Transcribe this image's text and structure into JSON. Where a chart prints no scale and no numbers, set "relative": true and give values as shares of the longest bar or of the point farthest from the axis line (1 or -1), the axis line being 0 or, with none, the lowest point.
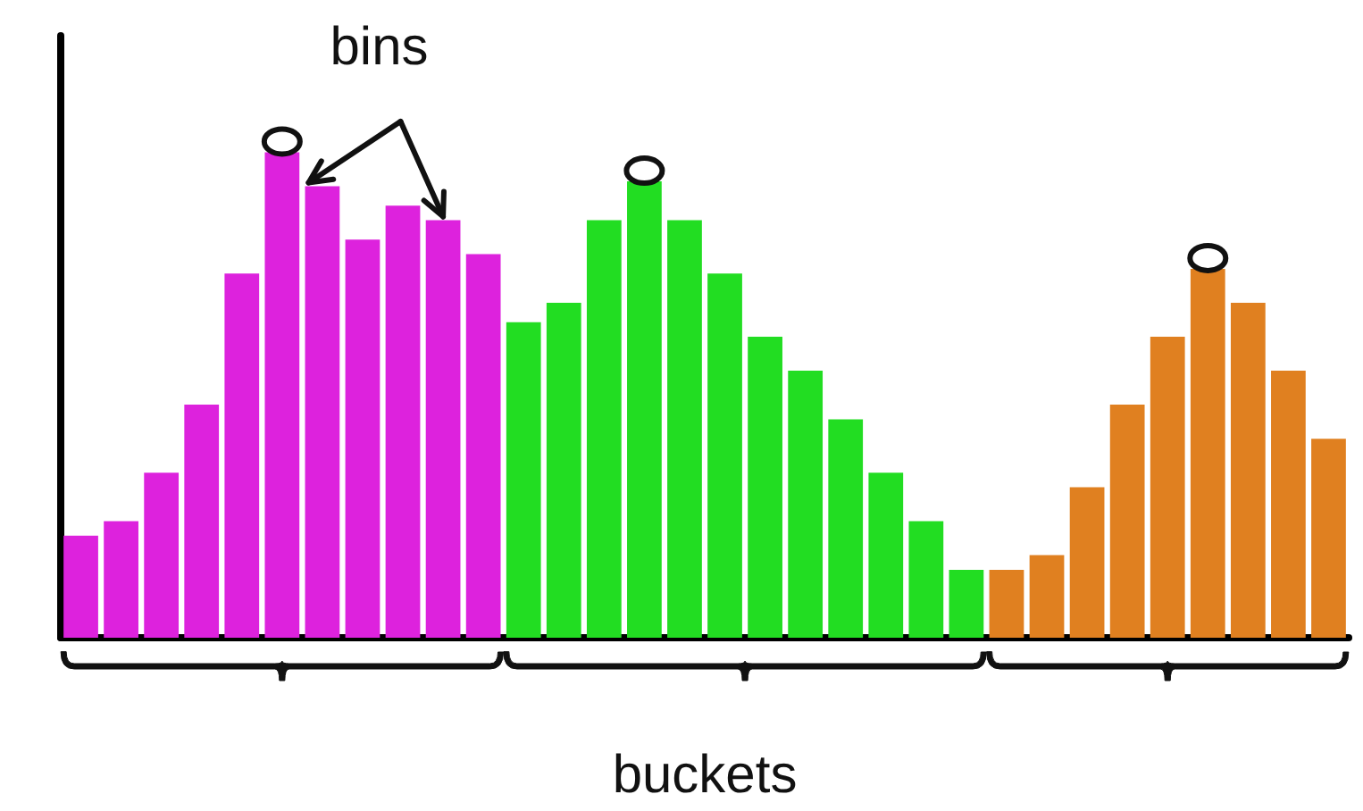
{
  "chart_data": {
    "type": "bar",
    "relative": true,
    "xlabel": "buckets",
    "annotations": [
      "bins"
    ],
    "categories": [
      null,
      null,
      null,
      null,
      null,
      null,
      null,
      null,
      null,
      null,
      null,
      null,
      null,
      null,
      null,
      null,
      null,
      null,
      null,
      null,
      null,
      null,
      null,
      null,
      null,
      null,
      null,
      null,
      null,
      null,
      null,
      null
    ],
    "values": [
      0.21,
      0.24,
      0.34,
      0.48,
      0.75,
      1,
      0.93,
      0.82,
      0.89,
      0.86,
      0.79,
      0.65,
      0.69,
      0.86,
      0.94,
      0.86,
      0.75,
      0.62,
      0.55,
      0.45,
      0.34,
      0.24,
      0.14,
      0.14,
      0.17,
      0.31,
      0.48,
      0.62,
      0.76,
      0.69,
      0.55,
      0.41
    ],
    "colors": [
      "#dd22dd",
      "#dd22dd",
      "#dd22dd",
      "#dd22dd",
      "#dd22dd",
      "#dd22dd",
      "#dd22dd",
      "#dd22dd",
      "#dd22dd",
      "#dd22dd",
      "#dd22dd",
      "#22dd22",
      "#22dd22",
      "#22dd22",
      "#22dd22",
      "#22dd22",
      "#22dd22",
      "#22dd22",
      "#22dd22",
      "#22dd22",
      "#22dd22",
      "#22dd22",
      "#22dd22",
      "#e08020",
      "#e08020",
      "#e08020",
      "#e08020",
      "#e08020",
      "#e08020",
      "#e08020",
      "#e08020",
      "#e08020"
    ],
    "grid": false
  }
}
